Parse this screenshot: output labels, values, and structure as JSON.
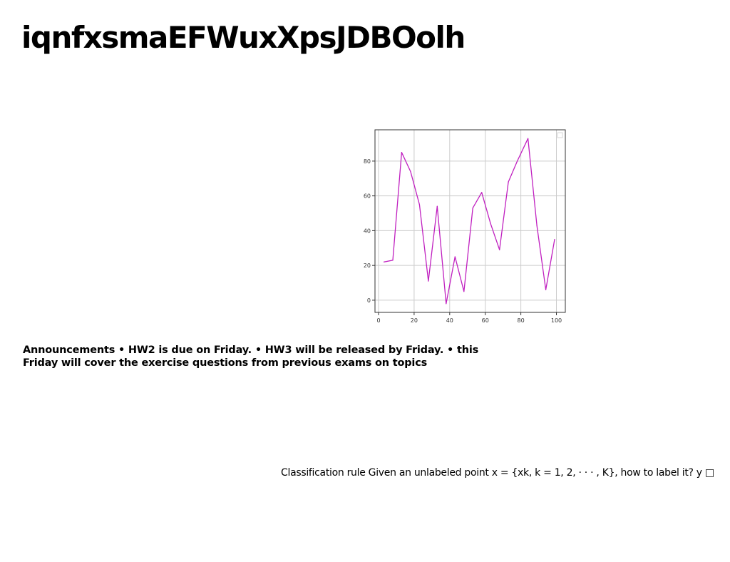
{
  "title": "iqnfxsmaEFWuxXpsJDBOolh",
  "announcement": "Announcements • HW2 is due on Friday. • HW3 will be released by Friday. • this Friday will cover the exercise questions from previous exams on topics",
  "classification": "Classification rule Given an unlabeled point x = {xk, k = 1, 2, · · · , K}, how to label it? y □",
  "colors": {
    "line": "#c020c0",
    "grid": "#cccccc",
    "axis": "#333333"
  },
  "chart_data": {
    "type": "line",
    "x": [
      3,
      8,
      13,
      18,
      23,
      28,
      33,
      38,
      43,
      48,
      53,
      58,
      63,
      68,
      73,
      78,
      84,
      89,
      94,
      99
    ],
    "series": [
      {
        "values": [
          22,
          23,
          85,
          74,
          55,
          11,
          54,
          -2,
          25,
          5,
          53,
          62,
          44,
          29,
          68,
          80,
          93,
          43,
          6,
          35
        ]
      }
    ],
    "xlim": [
      -2,
      105
    ],
    "ylim": [
      -7,
      98
    ],
    "xticks": [
      0,
      20,
      40,
      60,
      80,
      100
    ],
    "yticks": [
      0,
      20,
      40,
      60,
      80
    ],
    "grid": true,
    "title": "",
    "xlabel": "",
    "ylabel": ""
  }
}
